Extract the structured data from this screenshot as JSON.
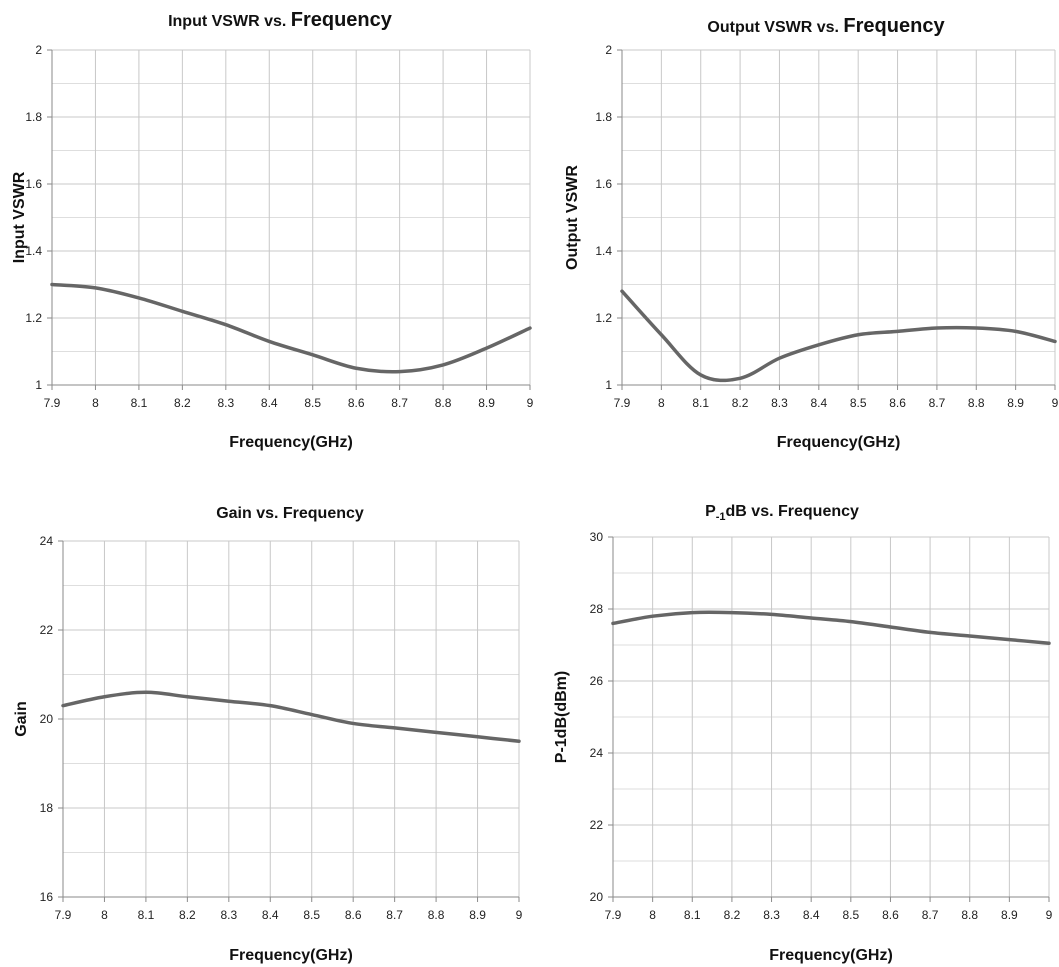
{
  "chart_data": [
    {
      "type": "line",
      "title_parts": [
        {
          "text": "Input VSWR  vs. ",
          "size": "normal"
        },
        {
          "text": "Frequency",
          "size": "big"
        }
      ],
      "xlabel": "Frequency(GHz)",
      "ylabel": "Input VSWR",
      "xlim": [
        7.9,
        9
      ],
      "ylim": [
        1,
        2
      ],
      "x_ticks": [
        "7.9",
        "8",
        "8.1",
        "8.2",
        "8.3",
        "8.4",
        "8.5",
        "8.6",
        "8.7",
        "8.8",
        "8.9",
        "9"
      ],
      "y_ticks": [
        "1",
        "1.2",
        "1.4",
        "1.6",
        "1.8",
        "2"
      ],
      "grid": true,
      "series": [
        {
          "x": [
            7.9,
            8.0,
            8.1,
            8.2,
            8.3,
            8.4,
            8.5,
            8.6,
            8.7,
            8.8,
            8.9,
            9.0
          ],
          "values": [
            1.3,
            1.29,
            1.26,
            1.22,
            1.18,
            1.13,
            1.09,
            1.05,
            1.04,
            1.06,
            1.11,
            1.17
          ]
        }
      ],
      "line_color": "#666666"
    },
    {
      "type": "line",
      "title_parts": [
        {
          "text": "Output VSWR  vs. ",
          "size": "normal"
        },
        {
          "text": "Frequency",
          "size": "big"
        }
      ],
      "xlabel": "Frequency(GHz)",
      "ylabel": "Output VSWR",
      "xlim": [
        7.9,
        9
      ],
      "ylim": [
        1,
        2
      ],
      "x_ticks": [
        "7.9",
        "8",
        "8.1",
        "8.2",
        "8.3",
        "8.4",
        "8.5",
        "8.6",
        "8.7",
        "8.8",
        "8.9",
        "9"
      ],
      "y_ticks": [
        "1",
        "1.2",
        "1.4",
        "1.6",
        "1.8",
        "2"
      ],
      "grid": true,
      "series": [
        {
          "x": [
            7.9,
            8.0,
            8.1,
            8.2,
            8.3,
            8.4,
            8.5,
            8.6,
            8.7,
            8.8,
            8.9,
            9.0
          ],
          "values": [
            1.28,
            1.15,
            1.03,
            1.02,
            1.08,
            1.12,
            1.15,
            1.16,
            1.17,
            1.17,
            1.16,
            1.13
          ]
        }
      ],
      "line_color": "#666666"
    },
    {
      "type": "line",
      "title_parts": [
        {
          "text": "Gain  vs. Frequency",
          "size": "normal"
        }
      ],
      "xlabel": "Frequency(GHz)",
      "ylabel": "Gain",
      "xlim": [
        7.9,
        9
      ],
      "ylim": [
        16,
        24
      ],
      "x_ticks": [
        "7.9",
        "8",
        "8.1",
        "8.2",
        "8.3",
        "8.4",
        "8.5",
        "8.6",
        "8.7",
        "8.8",
        "8.9",
        "9"
      ],
      "y_ticks": [
        "16",
        "18",
        "20",
        "22",
        "24"
      ],
      "grid": true,
      "series": [
        {
          "x": [
            7.9,
            8.0,
            8.1,
            8.2,
            8.3,
            8.4,
            8.5,
            8.6,
            8.7,
            8.8,
            8.9,
            9.0
          ],
          "values": [
            20.3,
            20.5,
            20.6,
            20.5,
            20.4,
            20.3,
            20.1,
            19.9,
            19.8,
            19.7,
            19.6,
            19.5
          ]
        }
      ],
      "line_color": "#666666"
    },
    {
      "type": "line",
      "title_parts": [
        {
          "text": "P",
          "size": "normal"
        },
        {
          "text": "-1",
          "size": "sub"
        },
        {
          "text": "dB vs. Frequency",
          "size": "normal"
        }
      ],
      "xlabel": "Frequency(GHz)",
      "ylabel": "P-1dB(dBm)",
      "xlim": [
        7.9,
        9
      ],
      "ylim": [
        20,
        30
      ],
      "x_ticks": [
        "7.9",
        "8",
        "8.1",
        "8.2",
        "8.3",
        "8.4",
        "8.5",
        "8.6",
        "8.7",
        "8.8",
        "8.9",
        "9"
      ],
      "y_ticks": [
        "20",
        "22",
        "24",
        "26",
        "28",
        "30"
      ],
      "grid": true,
      "series": [
        {
          "x": [
            7.9,
            8.0,
            8.1,
            8.2,
            8.3,
            8.4,
            8.5,
            8.6,
            8.7,
            8.8,
            8.9,
            9.0
          ],
          "values": [
            27.6,
            27.8,
            27.9,
            27.9,
            27.85,
            27.75,
            27.65,
            27.5,
            27.35,
            27.25,
            27.15,
            27.05
          ]
        }
      ],
      "line_color": "#666666"
    }
  ]
}
